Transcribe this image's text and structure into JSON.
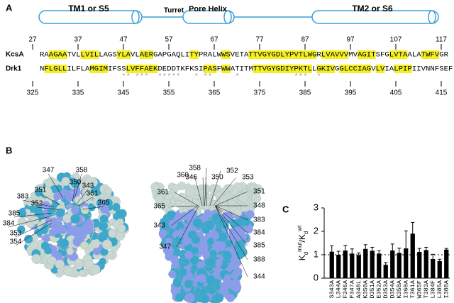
{
  "panel_a": {
    "label": "A",
    "segments": [
      "TM1 or S5",
      "Turret",
      "Pore Helix",
      "TM2 or S6"
    ],
    "top_numbers": [
      27,
      37,
      47,
      57,
      67,
      77,
      87,
      97,
      107,
      117
    ],
    "rows": [
      {
        "name": "KcsA",
        "sequence": "RAAGAATVLLVILLAGSYLAVLAERGAPGAQLITYPRALWWSVETATTVGYGDLYPVTLWGRLVAVVVMVAGITSFGLVTAALATWFVGR"
      },
      {
        "name": "Drk1",
        "sequence": "NFLGLLILFLAMGIMIFSSLVFFAEKDEDDTKFKSIPASFWWATITMTTVGYGDIYPKTLLGKIVGGLCCIAGVLVIALPIPIIVNNFSEF"
      }
    ],
    "stars": "                  ** ***  *****   * **     *            ***  *",
    "bottom_numbers": [
      325,
      335,
      345,
      355,
      365,
      375,
      385,
      395,
      405,
      415
    ]
  },
  "panel_b": {
    "label": "B",
    "left_labels": [
      "347",
      "358",
      "350",
      "343",
      "361",
      "351",
      "365",
      "383",
      "352",
      "385",
      "384",
      "353",
      "354"
    ],
    "right_labels": [
      "358",
      "352",
      "360",
      "346",
      "350",
      "353",
      "361",
      "351",
      "365",
      "348",
      "383",
      "384",
      "343",
      "385",
      "347",
      "388",
      "344"
    ]
  },
  "chart_data": {
    "type": "bar",
    "panel_label": "C",
    "ylabel": [
      "K",
      "d",
      "mut",
      "/K",
      "d",
      "wt"
    ],
    "categories": [
      "S343A",
      "L344A",
      "F346A",
      "F347A",
      "A348L",
      "K350A",
      "D351A",
      "E352A",
      "D353A",
      "D354A",
      "K358A",
      "I360A",
      "T361A",
      "W365F",
      "T383A",
      "L384F",
      "L385A",
      "I388A"
    ],
    "values": [
      1.13,
      1.0,
      1.18,
      1.05,
      0.98,
      1.25,
      1.17,
      1.05,
      0.57,
      1.18,
      1.08,
      1.27,
      1.9,
      1.12,
      1.2,
      0.82,
      0.73,
      1.22
    ],
    "errors": [
      0.25,
      0.15,
      0.22,
      0.2,
      0.1,
      0.18,
      0.15,
      0.12,
      0.1,
      0.28,
      0.2,
      0.75,
      0.48,
      0.15,
      0.12,
      0.2,
      0.08,
      0.05
    ],
    "color": "#000000",
    "ylim": [
      0,
      3
    ],
    "yticks": [
      0,
      1,
      2,
      3
    ],
    "reference": 1
  }
}
